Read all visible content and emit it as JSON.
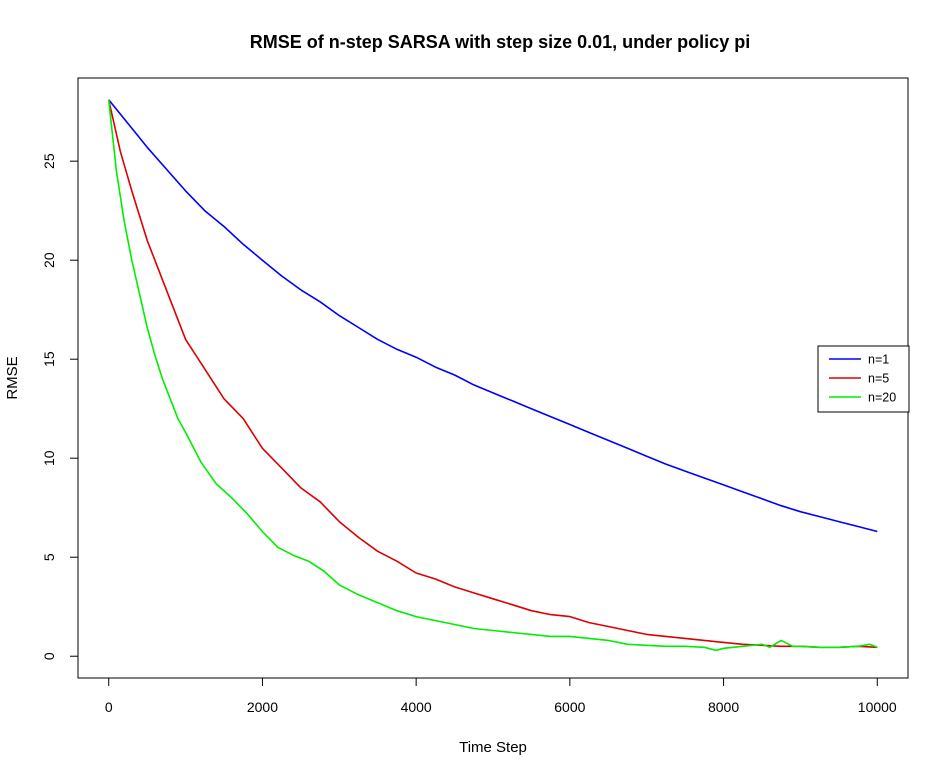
{
  "chart_data": {
    "type": "line",
    "title": "RMSE of n-step SARSA with step size 0.01, under policy pi",
    "xlabel": "Time Step",
    "ylabel": "RMSE",
    "xlim": [
      -400,
      10400
    ],
    "ylim": [
      -1.1,
      29.2
    ],
    "xticks": [
      0,
      2000,
      4000,
      6000,
      8000,
      10000
    ],
    "xtick_labels": [
      "0",
      "2000",
      "4000",
      "6000",
      "8000",
      "10000"
    ],
    "yticks": [
      0,
      5,
      10,
      15,
      20,
      25
    ],
    "ytick_labels": [
      "0",
      "5",
      "10",
      "15",
      "20",
      "25"
    ],
    "grid": false,
    "legend_position": "right",
    "series": [
      {
        "name": "n=1",
        "color": "#0000ff",
        "x": [
          0,
          250,
          500,
          750,
          1000,
          1250,
          1500,
          1750,
          2000,
          2250,
          2500,
          2750,
          3000,
          3250,
          3500,
          3750,
          4000,
          4250,
          4500,
          4750,
          5000,
          5250,
          5500,
          5750,
          6000,
          6250,
          6500,
          6750,
          7000,
          7250,
          7500,
          7750,
          8000,
          8250,
          8500,
          8750,
          9000,
          9250,
          9500,
          9750,
          10000
        ],
        "y": [
          28.1,
          26.9,
          25.7,
          24.6,
          23.5,
          22.5,
          21.7,
          20.8,
          20.0,
          19.2,
          18.5,
          17.9,
          17.2,
          16.6,
          16.0,
          15.5,
          15.1,
          14.6,
          14.2,
          13.7,
          13.3,
          12.9,
          12.5,
          12.1,
          11.7,
          11.3,
          10.9,
          10.5,
          10.1,
          9.7,
          9.35,
          9.0,
          8.65,
          8.3,
          7.95,
          7.6,
          7.3,
          7.05,
          6.8,
          6.55,
          6.3
        ]
      },
      {
        "name": "n=5",
        "color": "#dd0000",
        "x": [
          0,
          150,
          300,
          500,
          750,
          1000,
          1250,
          1500,
          1750,
          2000,
          2250,
          2500,
          2750,
          3000,
          3250,
          3500,
          3750,
          4000,
          4250,
          4500,
          4750,
          5000,
          5250,
          5500,
          5750,
          6000,
          6250,
          6500,
          6750,
          7000,
          7250,
          7500,
          7750,
          8000,
          8250,
          8500,
          8750,
          9000,
          9250,
          9500,
          9750,
          10000
        ],
        "y": [
          28.1,
          25.5,
          23.5,
          21.0,
          18.5,
          16.0,
          14.5,
          13.0,
          12.0,
          10.5,
          9.5,
          8.5,
          7.8,
          6.8,
          6.0,
          5.3,
          4.8,
          4.2,
          3.9,
          3.5,
          3.2,
          2.9,
          2.6,
          2.3,
          2.1,
          2.0,
          1.7,
          1.5,
          1.3,
          1.1,
          1.0,
          0.9,
          0.8,
          0.7,
          0.6,
          0.55,
          0.5,
          0.5,
          0.45,
          0.45,
          0.5,
          0.45
        ]
      },
      {
        "name": "n=20",
        "color": "#00ee00",
        "x": [
          0,
          100,
          200,
          300,
          400,
          500,
          600,
          700,
          800,
          900,
          1000,
          1200,
          1400,
          1600,
          1800,
          2000,
          2200,
          2400,
          2600,
          2800,
          3000,
          3250,
          3500,
          3750,
          4000,
          4250,
          4500,
          4750,
          5000,
          5250,
          5500,
          5750,
          6000,
          6250,
          6500,
          6750,
          7000,
          7250,
          7500,
          7750,
          7900,
          8000,
          8250,
          8500,
          8600,
          8750,
          8900,
          9000,
          9250,
          9500,
          9750,
          9900,
          10000
        ],
        "y": [
          28.1,
          24.5,
          22.0,
          20.0,
          18.3,
          16.6,
          15.2,
          14.0,
          13.0,
          12.0,
          11.3,
          9.8,
          8.7,
          8.0,
          7.2,
          6.3,
          5.5,
          5.1,
          4.8,
          4.3,
          3.6,
          3.1,
          2.7,
          2.3,
          2.0,
          1.8,
          1.6,
          1.4,
          1.3,
          1.2,
          1.1,
          1.0,
          1.0,
          0.9,
          0.8,
          0.6,
          0.55,
          0.5,
          0.5,
          0.45,
          0.3,
          0.4,
          0.5,
          0.6,
          0.45,
          0.8,
          0.5,
          0.5,
          0.45,
          0.45,
          0.5,
          0.6,
          0.45
        ]
      }
    ]
  }
}
